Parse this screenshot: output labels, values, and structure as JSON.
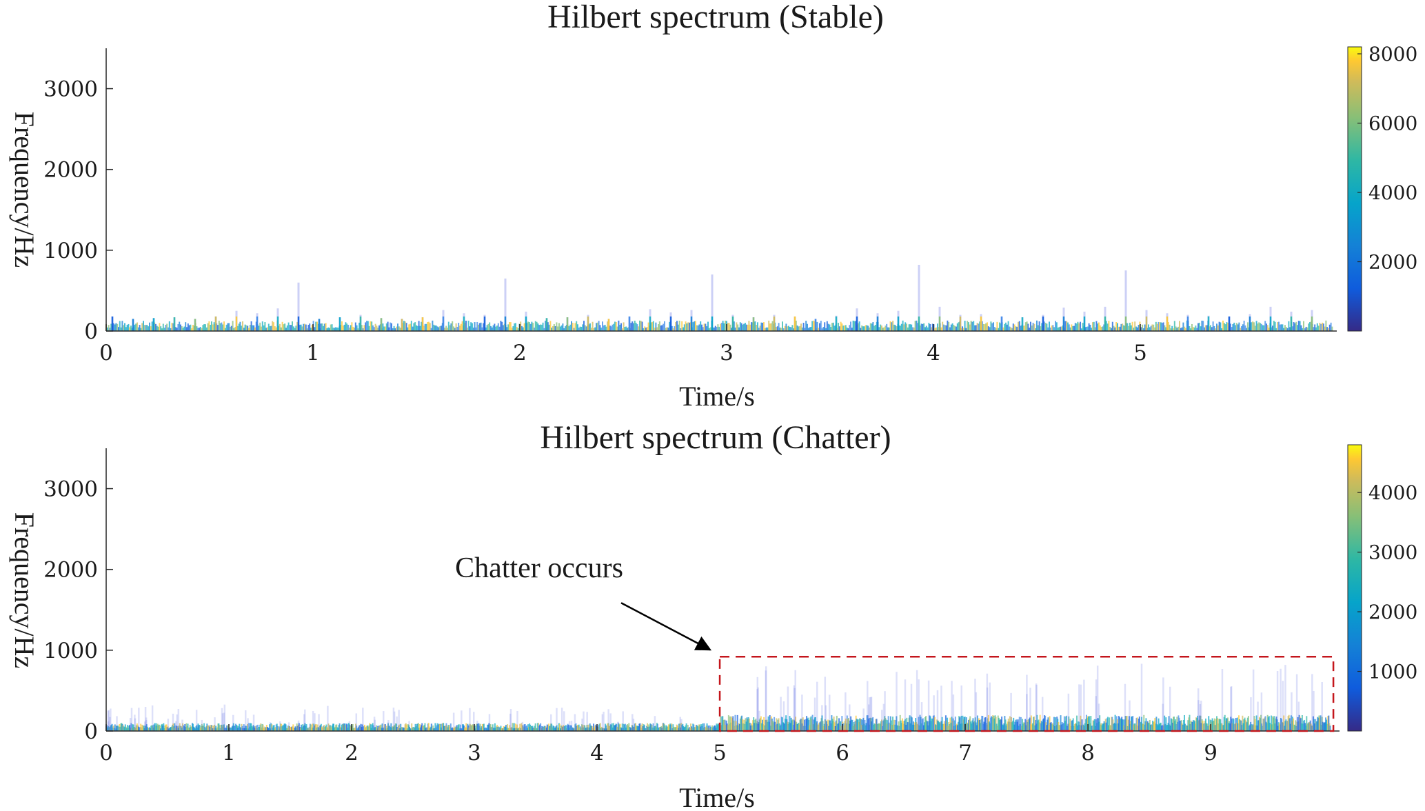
{
  "chart_data": [
    {
      "type": "heatmap",
      "title": "Hilbert spectrum (Stable)",
      "xlabel": "Time/s",
      "ylabel": "Frequency/Hz",
      "xlim": [
        0,
        5.95
      ],
      "ylim": [
        0,
        3500
      ],
      "xticks": [
        0,
        1,
        2,
        3,
        4,
        5
      ],
      "yticks": [
        0,
        1000,
        2000,
        3000
      ],
      "grid": false,
      "colorbar": {
        "range": [
          0,
          8200
        ],
        "ticks": [
          2000,
          4000,
          6000,
          8000
        ],
        "colormap": "parula"
      },
      "series": [
        {
          "spike_period": 0.1,
          "spike_peak_hz": [
            180,
            150,
            160,
            170,
            150,
            180,
            250,
            220,
            280,
            600,
            150,
            170,
            200,
            160,
            150,
            170,
            260,
            220,
            200,
            650,
            240,
            160,
            170,
            200,
            150,
            180,
            270,
            230,
            260,
            700,
            200,
            170,
            200,
            180,
            150,
            190,
            280,
            220,
            250,
            820,
            300,
            200,
            210,
            180,
            170,
            200,
            290,
            240,
            300,
            750,
            260,
            220,
            200,
            190,
            180,
            210,
            300,
            240,
            260,
            600
          ],
          "base_band_hz": [
            0,
            130
          ]
        }
      ]
    },
    {
      "type": "heatmap",
      "title": "Hilbert spectrum (Chatter)",
      "xlabel": "Time/s",
      "ylabel": "Frequency/Hz",
      "xlim": [
        0,
        10.05
      ],
      "ylim": [
        0,
        3500
      ],
      "xticks": [
        0,
        1,
        2,
        3,
        4,
        5,
        6,
        7,
        8,
        9
      ],
      "yticks": [
        0,
        1000,
        2000,
        3000
      ],
      "grid": false,
      "colorbar": {
        "range": [
          0,
          4800
        ],
        "ticks": [
          1000,
          2000,
          3000,
          4000
        ],
        "colormap": "parula"
      },
      "series": [
        {
          "segment": "stable",
          "t_range": [
            0,
            5
          ],
          "base_band_hz": [
            0,
            100
          ],
          "spike_peak_hz": [
            350,
            300,
            260,
            300,
            320,
            280,
            250,
            300
          ]
        },
        {
          "segment": "chatter",
          "t_range": [
            5,
            10
          ],
          "base_band_hz": [
            0,
            200
          ],
          "spike_peak_hz": [
            900,
            850,
            800,
            750,
            800,
            820,
            760,
            700
          ]
        }
      ],
      "annotations": [
        {
          "text": "Chatter occurs",
          "x_range": [
            5.0,
            10.0
          ],
          "y_range": [
            0,
            920
          ]
        }
      ]
    }
  ]
}
